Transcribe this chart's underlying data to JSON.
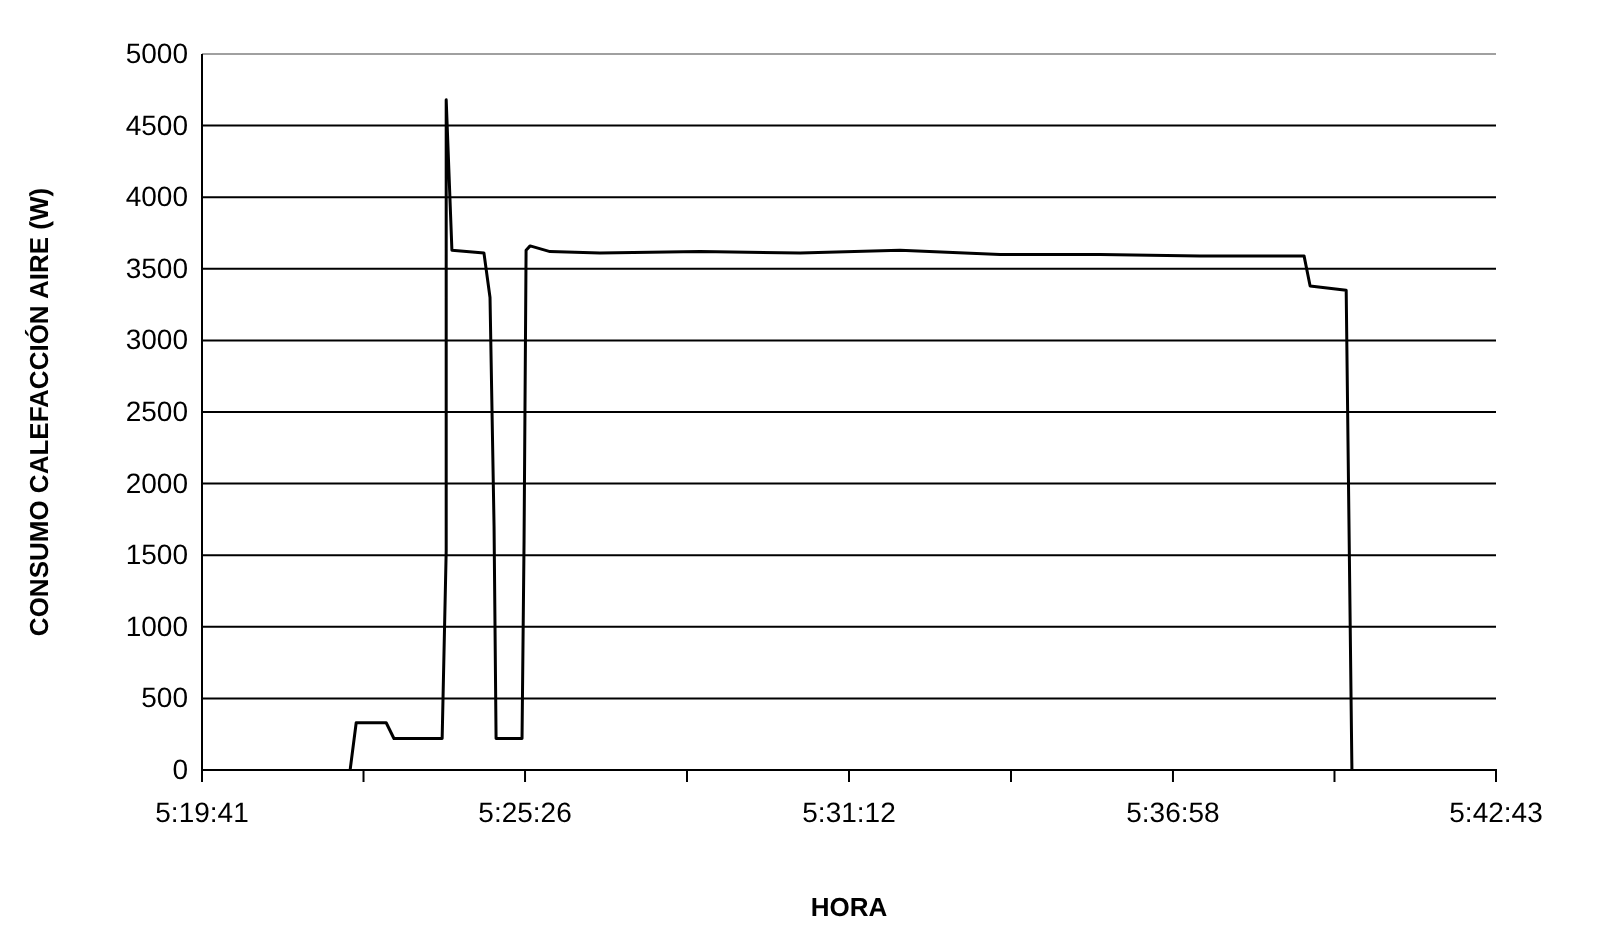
{
  "chart_data": {
    "type": "line",
    "xlabel": "HORA",
    "ylabel": "CONSUMO CALEFACCIÓN AIRE (W)",
    "x": [
      5.372,
      5.3738,
      5.3827,
      5.385,
      5.3993,
      5.4005,
      5.4005,
      5.4022,
      5.4117,
      5.4135,
      5.4147,
      5.4153,
      5.423,
      5.4236,
      5.4242,
      5.4254,
      5.4313,
      5.4461,
      5.4758,
      5.5055,
      5.5351,
      5.5648,
      5.5945,
      5.6241,
      5.655,
      5.6568,
      5.6675,
      5.6692
    ],
    "series": [
      {
        "color": "#000000",
        "values": [
          0,
          330,
          330,
          220,
          220,
          1530,
          4680,
          3630,
          3610,
          3300,
          1700,
          220,
          220,
          1600,
          3630,
          3660,
          3620,
          3610,
          3620,
          3610,
          3630,
          3600,
          3600,
          3590,
          3590,
          3380,
          3350,
          0
        ]
      }
    ],
    "xlim": [
      5.328056,
      5.711944
    ],
    "xticks": [
      {
        "value": 5.328056,
        "label": "5:19:41"
      },
      {
        "value": 5.375972,
        "label": null
      },
      {
        "value": 5.423889,
        "label": "5:25:26"
      },
      {
        "value": 5.471944,
        "label": null
      },
      {
        "value": 5.52,
        "label": "5:31:12"
      },
      {
        "value": 5.568056,
        "label": null
      },
      {
        "value": 5.616111,
        "label": "5:36:58"
      },
      {
        "value": 5.664028,
        "label": null
      },
      {
        "value": 5.711944,
        "label": "5:42:43"
      }
    ],
    "ylim": [
      0,
      5000
    ],
    "yticks": [
      0,
      500,
      1000,
      1500,
      2000,
      2500,
      3000,
      3500,
      4000,
      4500,
      5000
    ],
    "grid": "y",
    "marker": "none",
    "line_style": "solid"
  }
}
